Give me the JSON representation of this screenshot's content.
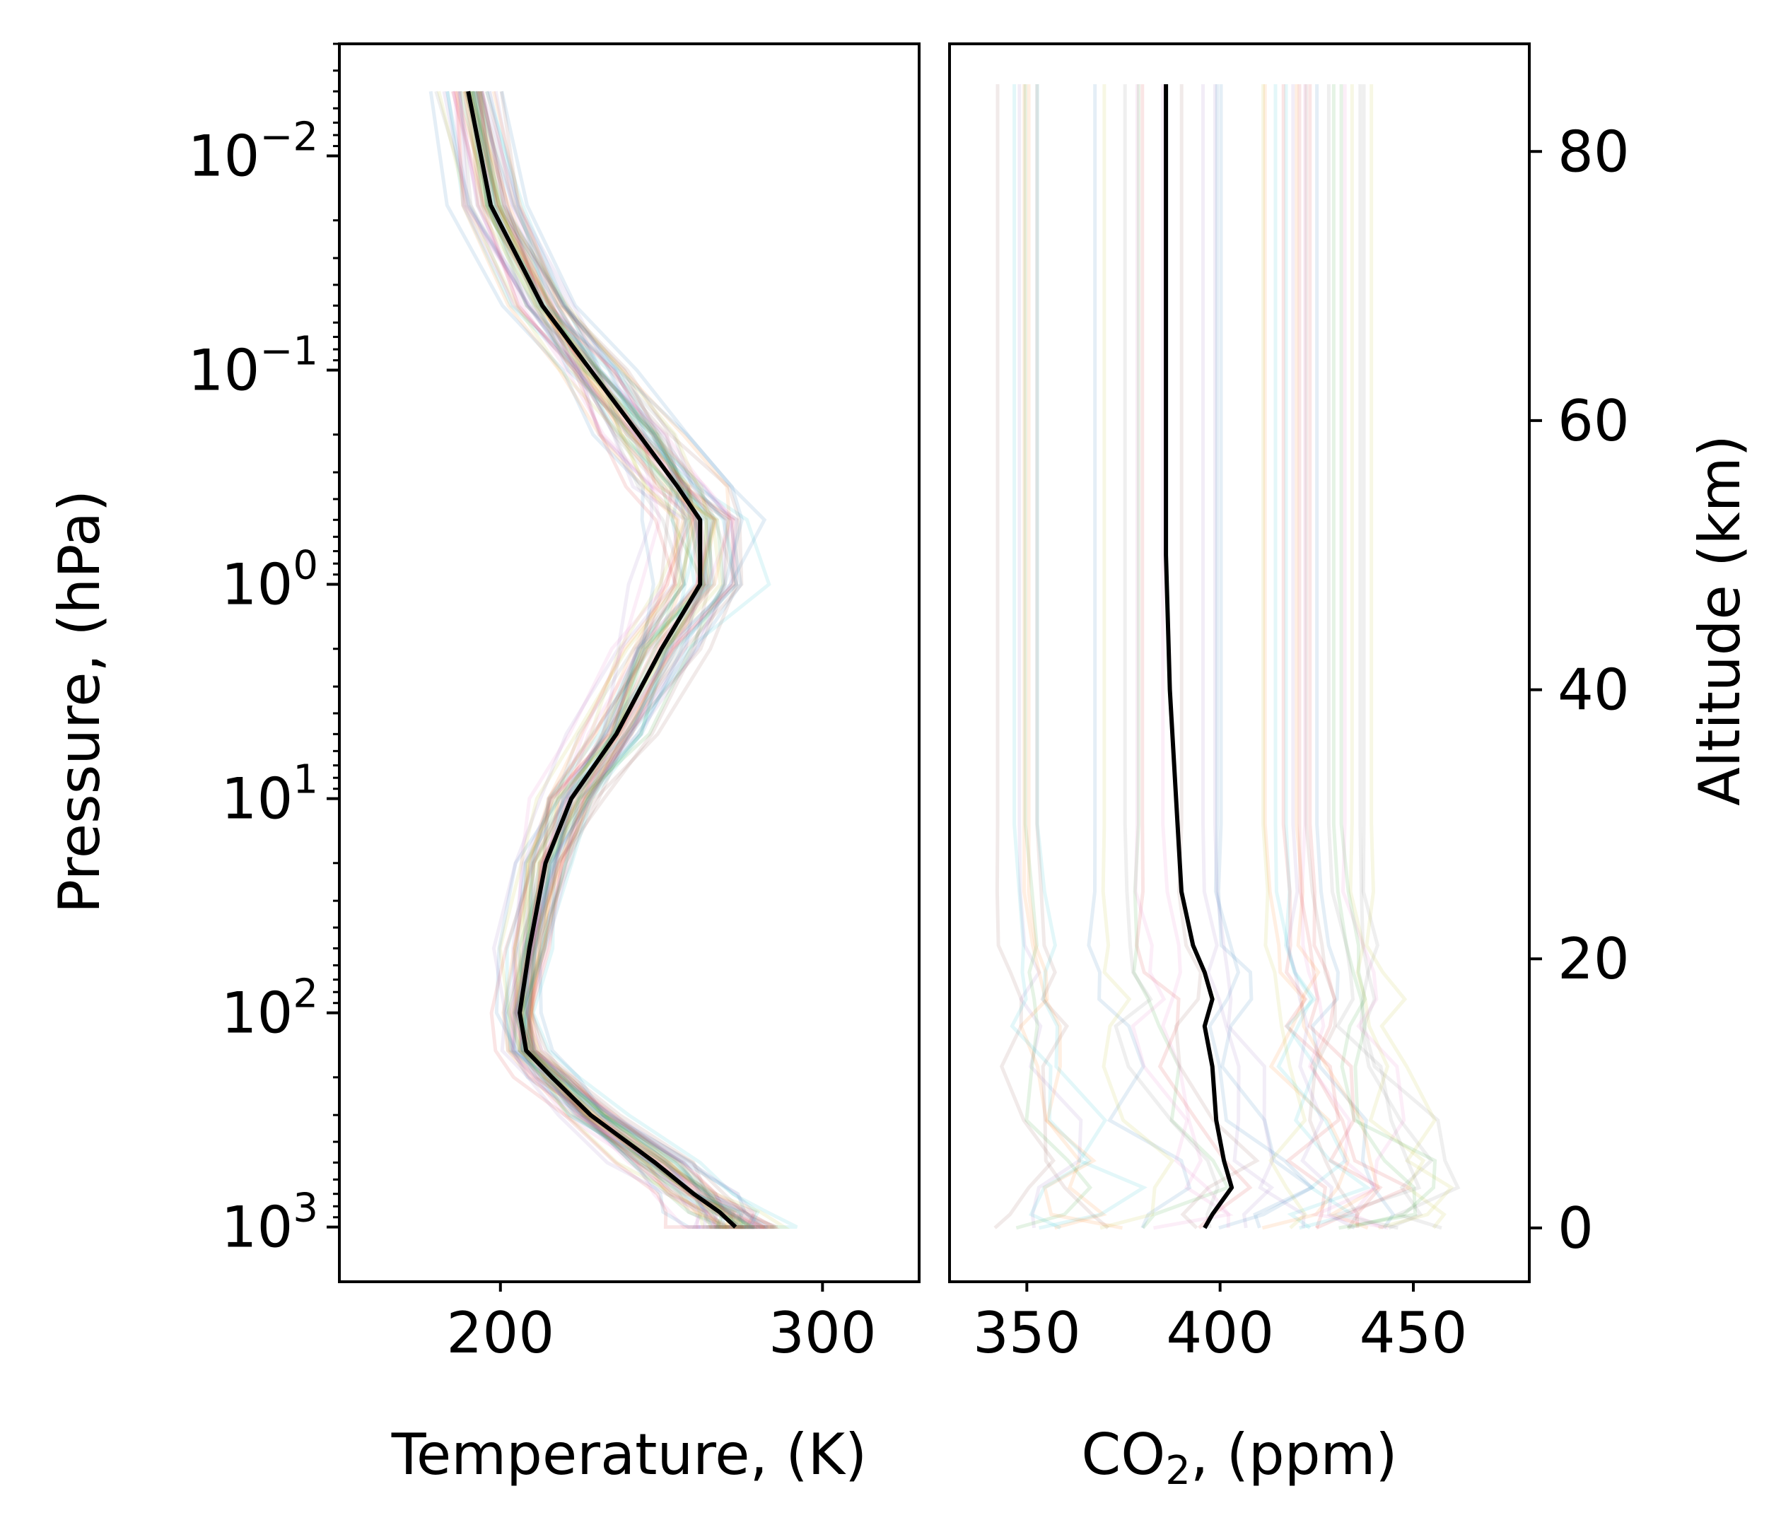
{
  "chart_data": [
    {
      "type": "line",
      "panel": "temperature",
      "xlabel": "Temperature, (K)",
      "ylabel": "Pressure, (hPa)",
      "xlim": [
        150,
        330
      ],
      "xticks": [
        200,
        300
      ],
      "xtick_labels": [
        "200",
        "300"
      ],
      "ylim": [
        1800,
        0.003
      ],
      "yscale": "log",
      "yaxis_inverted": true,
      "yticks": [
        0.01,
        0.1,
        1,
        10,
        100,
        1000
      ],
      "ytick_labels": [
        {
          "base": "10",
          "exp": "−2"
        },
        {
          "base": "10",
          "exp": "−1"
        },
        {
          "base": "10",
          "exp": "0"
        },
        {
          "base": "10",
          "exp": "1"
        },
        {
          "base": "10",
          "exp": "2"
        },
        {
          "base": "10",
          "exp": "3"
        }
      ],
      "pressure_levels": [
        0.005,
        0.017,
        0.05,
        0.1,
        0.2,
        0.35,
        0.5,
        1,
        2,
        5,
        10,
        20,
        50,
        100,
        150,
        200,
        300,
        500,
        700,
        850,
        1000
      ],
      "mean_profile": {
        "color": "#000000",
        "temperature": [
          190,
          197,
          213,
          228,
          243,
          255,
          262,
          262,
          250,
          236,
          222,
          214,
          209,
          206,
          208,
          216,
          228,
          248,
          260,
          268,
          273
        ]
      },
      "ensemble": {
        "count": 60,
        "alpha": 0.12,
        "temperature_spread_K": [
          18,
          20,
          22,
          25,
          28,
          30,
          32,
          35,
          30,
          25,
          22,
          20,
          18,
          15,
          14,
          16,
          18,
          22,
          25,
          30,
          32
        ],
        "colors": [
          "#1f77b4",
          "#ff7f0e",
          "#2ca02c",
          "#d62728",
          "#9467bd",
          "#8c564b",
          "#e377c2",
          "#7f7f7f",
          "#bcbd22",
          "#17becf"
        ]
      },
      "grid": false
    },
    {
      "type": "line",
      "panel": "co2",
      "xlabel_parts": {
        "pre": "CO",
        "sub": "2",
        "post": ", (ppm)"
      },
      "xlim": [
        330,
        480
      ],
      "xticks": [
        350,
        400,
        450
      ],
      "xtick_labels": [
        "350",
        "400",
        "450"
      ],
      "ylabel": "Altitude (km)",
      "ylim": [
        -4,
        88
      ],
      "yticks": [
        0,
        20,
        40,
        60,
        80
      ],
      "ytick_labels": [
        "0",
        "20",
        "40",
        "60",
        "80"
      ],
      "altitude_levels_km": [
        0,
        1,
        3,
        5,
        8,
        12,
        15,
        17,
        19,
        21,
        25,
        30,
        40,
        50,
        60,
        85
      ],
      "mean_profile": {
        "color": "#000000",
        "co2_ppm": [
          396,
          398,
          403,
          401,
          399,
          398,
          396,
          398,
          396,
          393,
          390,
          389,
          387,
          386,
          386,
          386
        ]
      },
      "ensemble": {
        "count": 40,
        "alpha": 0.12,
        "co2_range_ppm": [
          342,
          442
        ],
        "colors": [
          "#1f77b4",
          "#ff7f0e",
          "#2ca02c",
          "#d62728",
          "#9467bd",
          "#8c564b",
          "#e377c2",
          "#7f7f7f",
          "#bcbd22",
          "#17becf"
        ]
      },
      "grid": false
    }
  ]
}
